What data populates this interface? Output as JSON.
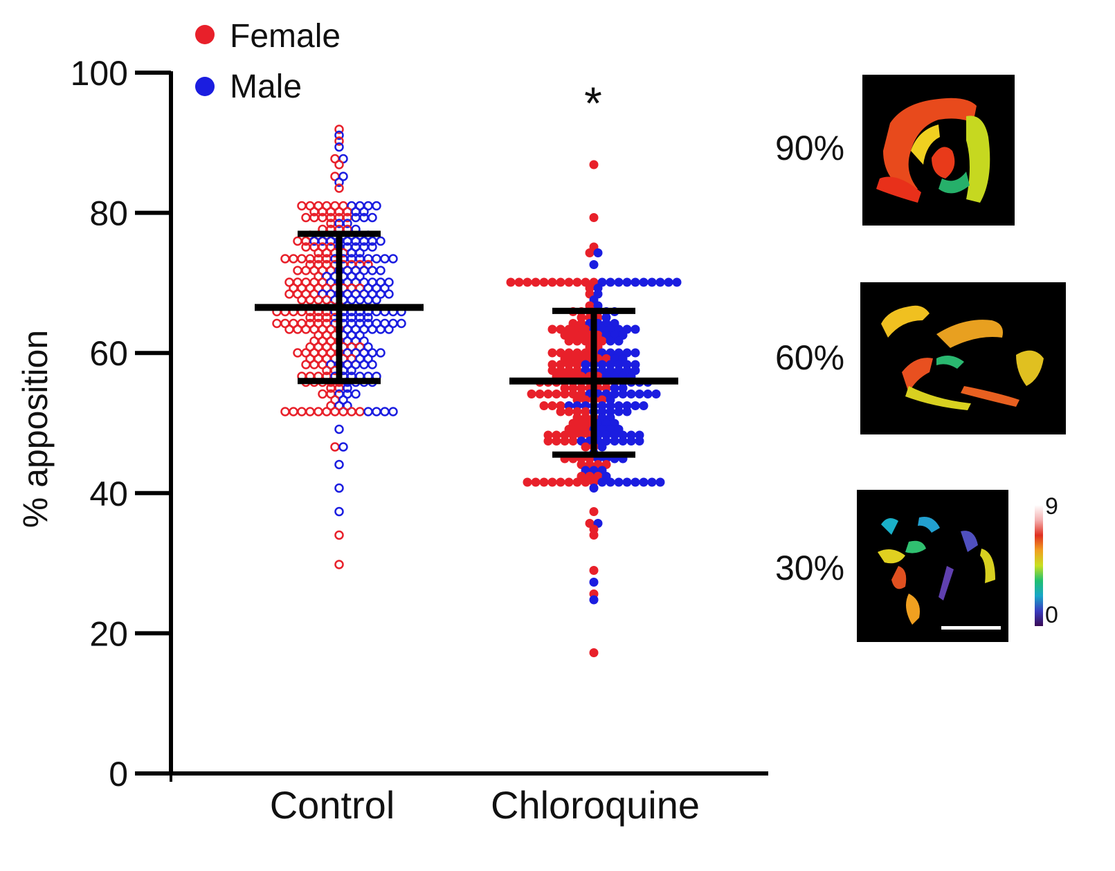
{
  "chart_data": {
    "type": "scatter",
    "subtype": "dot-plot-with-mean-and-sd",
    "ylabel": "% apposition",
    "xlabel": "",
    "ylim": [
      0,
      100
    ],
    "yticks": [
      0,
      20,
      40,
      60,
      80,
      100
    ],
    "categories": [
      "Control",
      "Chloroquine"
    ],
    "legend": {
      "position": "top-left",
      "entries": [
        {
          "label": "Female",
          "color": "#e8202a"
        },
        {
          "label": "Male",
          "color": "#1b1de0"
        }
      ]
    },
    "groups": [
      {
        "name": "Control",
        "marker": "open",
        "mean": 66.5,
        "sd_upper": 77,
        "sd_lower": 56,
        "n_female": 160,
        "n_male": 150
      },
      {
        "name": "Chloroquine",
        "marker": "filled",
        "mean": 56,
        "sd_upper": 66,
        "sd_lower": 45.5,
        "n_female": 140,
        "n_male": 130
      }
    ],
    "annotations": [
      {
        "text": "*",
        "category": "Chloroquine"
      }
    ],
    "outliers": {
      "Control": {
        "Female": [
          92,
          90,
          88,
          87,
          85,
          83.5,
          47,
          34,
          29.5
        ],
        "Male": [
          91,
          89.5,
          87.5,
          85.5,
          84.5,
          49.5,
          46.5,
          44,
          41,
          37
        ]
      },
      "Chloroquine": {
        "Female": [
          87,
          79.5,
          75,
          74.5,
          37.5,
          35.5,
          34.5,
          34,
          29,
          26,
          17.5
        ],
        "Male": [
          74,
          72.5,
          41,
          35.5,
          27,
          25
        ]
      }
    }
  },
  "insets": [
    {
      "label": "90%",
      "variant": "high"
    },
    {
      "label": "60%",
      "variant": "mid"
    },
    {
      "label": "30%",
      "variant": "low"
    }
  ],
  "colorbar": {
    "max_label": "9",
    "min_label": "0"
  },
  "colors": {
    "female": "#e8202a",
    "male": "#1b1de0",
    "axis": "#000000"
  }
}
